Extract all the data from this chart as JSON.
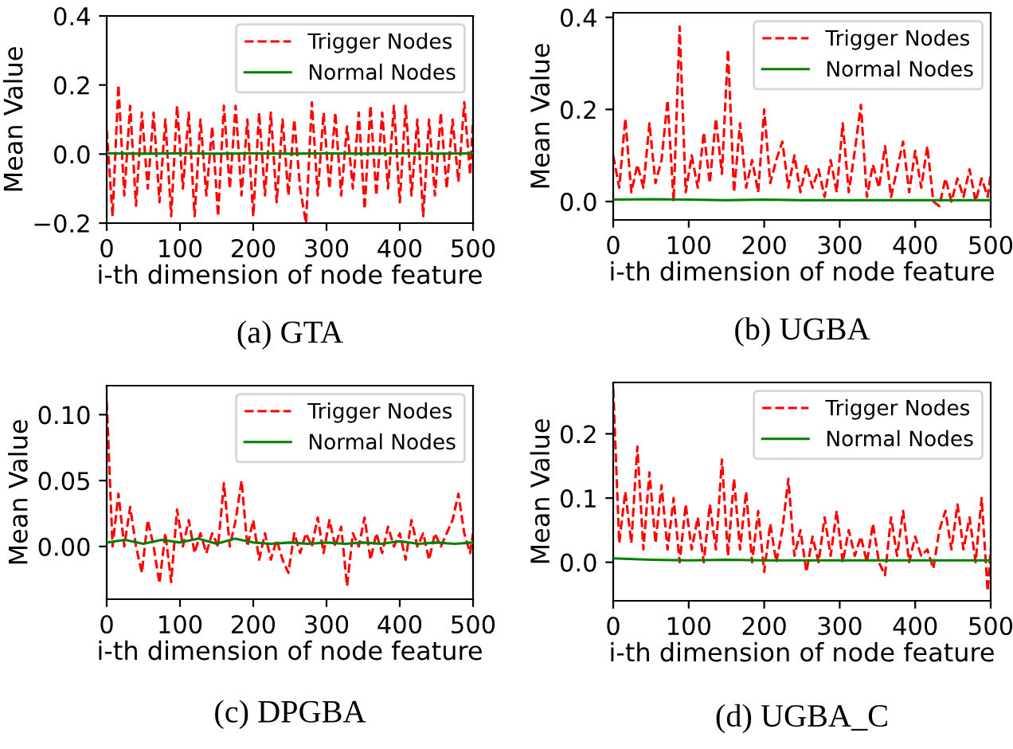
{
  "chart_data": [
    {
      "type": "line",
      "xlabel": "i-th dimension of node feature",
      "ylabel": "Mean Value",
      "annotations": [
        "(a) GTA"
      ],
      "xlim": [
        0,
        500
      ],
      "xticks": [
        0,
        100,
        200,
        300,
        400,
        500
      ],
      "ylim": [
        -0.2,
        0.4
      ],
      "yticks": [
        {
          "value": -0.2,
          "label": "−0.2"
        },
        {
          "value": 0,
          "label": "0.0"
        },
        {
          "value": 0.2,
          "label": "0.2"
        },
        {
          "value": 0.4,
          "label": "0.4"
        }
      ],
      "legend": "top right",
      "grid": false,
      "series": [
        {
          "name": "Trigger Nodes",
          "color": "#ff0000",
          "line_style": "dashed",
          "x": [
            0,
            8,
            16,
            24,
            32,
            40,
            48,
            56,
            64,
            72,
            80,
            88,
            96,
            104,
            112,
            120,
            128,
            136,
            144,
            152,
            160,
            168,
            176,
            184,
            192,
            200,
            208,
            216,
            224,
            232,
            240,
            248,
            256,
            264,
            272,
            280,
            288,
            296,
            304,
            312,
            320,
            328,
            336,
            344,
            352,
            360,
            368,
            376,
            384,
            392,
            400,
            408,
            416,
            424,
            432,
            440,
            448,
            456,
            464,
            472,
            480,
            488,
            496,
            500
          ],
          "values": [
            0.07,
            -0.18,
            0.2,
            -0.12,
            0.14,
            -0.15,
            0.12,
            -0.1,
            0.12,
            -0.14,
            0.1,
            -0.18,
            0.14,
            -0.1,
            0.12,
            -0.18,
            0.1,
            -0.12,
            0.08,
            -0.18,
            0.14,
            -0.1,
            0.14,
            -0.12,
            0.1,
            -0.18,
            0.12,
            -0.12,
            0.12,
            -0.14,
            0.1,
            -0.12,
            0.1,
            -0.1,
            -0.2,
            0.15,
            -0.12,
            0.12,
            -0.1,
            0.12,
            -0.12,
            0.08,
            -0.1,
            0.12,
            -0.16,
            0.14,
            -0.12,
            0.12,
            -0.1,
            0.14,
            -0.14,
            0.14,
            -0.12,
            0.1,
            -0.18,
            0.1,
            -0.12,
            0.12,
            -0.1,
            0.1,
            -0.08,
            0.15,
            -0.06,
            0.1
          ]
        },
        {
          "name": "Normal Nodes",
          "color": "#008000",
          "line_style": "solid",
          "x": [
            0,
            50,
            100,
            150,
            200,
            250,
            300,
            350,
            400,
            450,
            500
          ],
          "values": [
            0.002,
            0.001,
            0.002,
            0.001,
            0.002,
            0.001,
            0.002,
            0.001,
            0.002,
            0.001,
            0.002
          ]
        }
      ]
    },
    {
      "type": "line",
      "xlabel": "i-th dimension of node feature",
      "ylabel": "Mean Value",
      "annotations": [
        "(b) UGBA"
      ],
      "xlim": [
        0,
        500
      ],
      "xticks": [
        0,
        100,
        200,
        300,
        400,
        500
      ],
      "ylim": [
        -0.04,
        0.41
      ],
      "yticks": [
        {
          "value": 0,
          "label": "0.0"
        },
        {
          "value": 0.2,
          "label": "0.2"
        },
        {
          "value": 0.4,
          "label": "0.4"
        }
      ],
      "legend": "top right",
      "grid": false,
      "series": [
        {
          "name": "Trigger Nodes",
          "color": "#ff0000",
          "line_style": "dashed",
          "x": [
            0,
            8,
            16,
            24,
            32,
            40,
            48,
            56,
            64,
            72,
            80,
            88,
            96,
            104,
            112,
            120,
            128,
            136,
            144,
            152,
            160,
            168,
            176,
            184,
            192,
            200,
            208,
            216,
            224,
            232,
            240,
            248,
            256,
            264,
            272,
            280,
            288,
            296,
            304,
            312,
            320,
            328,
            336,
            344,
            352,
            360,
            368,
            376,
            384,
            392,
            400,
            408,
            416,
            424,
            432,
            440,
            448,
            456,
            464,
            472,
            480,
            488,
            496,
            500
          ],
          "values": [
            0.1,
            0.03,
            0.18,
            0.02,
            0.08,
            0.03,
            0.17,
            0.04,
            0.09,
            0.22,
            0.0,
            0.38,
            0.02,
            0.1,
            0.03,
            0.15,
            0.04,
            0.18,
            0.06,
            0.33,
            0.02,
            0.17,
            0.03,
            0.09,
            0.02,
            0.2,
            0.04,
            0.09,
            0.13,
            0.03,
            0.1,
            0.02,
            0.08,
            0.03,
            0.07,
            0.01,
            0.09,
            0.02,
            0.17,
            0.02,
            0.11,
            0.21,
            0.01,
            0.08,
            0.03,
            0.12,
            0.01,
            0.07,
            0.13,
            0.02,
            0.11,
            0.03,
            0.12,
            0.0,
            -0.01,
            0.05,
            0.0,
            0.05,
            0.01,
            0.07,
            0.0,
            0.05,
            0.01,
            0.06
          ]
        },
        {
          "name": "Normal Nodes",
          "color": "#008000",
          "line_style": "solid",
          "x": [
            0,
            50,
            100,
            150,
            200,
            250,
            300,
            350,
            400,
            450,
            500
          ],
          "values": [
            0.004,
            0.005,
            0.004,
            0.003,
            0.004,
            0.003,
            0.003,
            0.003,
            0.003,
            0.003,
            0.003
          ]
        }
      ]
    },
    {
      "type": "line",
      "xlabel": "i-th dimension of node feature",
      "ylabel": "Mean Value",
      "annotations": [
        "(c) DPGBA"
      ],
      "xlim": [
        0,
        500
      ],
      "xticks": [
        0,
        100,
        200,
        300,
        400,
        500
      ],
      "ylim": [
        -0.04,
        0.122
      ],
      "yticks": [
        {
          "value": 0,
          "label": "0.00"
        },
        {
          "value": 0.05,
          "label": "0.05"
        },
        {
          "value": 0.1,
          "label": "0.10"
        }
      ],
      "legend": "top right",
      "grid": false,
      "series": [
        {
          "name": "Trigger Nodes",
          "color": "#ff0000",
          "line_style": "dashed",
          "x": [
            0,
            8,
            16,
            24,
            32,
            40,
            48,
            56,
            64,
            72,
            80,
            88,
            96,
            104,
            112,
            120,
            128,
            136,
            144,
            152,
            160,
            168,
            176,
            184,
            192,
            200,
            208,
            216,
            224,
            232,
            240,
            248,
            256,
            264,
            272,
            280,
            288,
            296,
            304,
            312,
            320,
            328,
            336,
            344,
            352,
            360,
            368,
            376,
            384,
            392,
            400,
            408,
            416,
            424,
            432,
            440,
            448,
            456,
            464,
            472,
            480,
            488,
            496,
            500
          ],
          "values": [
            0.11,
            0.0,
            0.04,
            0.0,
            0.03,
            0.0,
            -0.02,
            0.02,
            0.0,
            -0.028,
            0.01,
            -0.027,
            0.028,
            0.0,
            0.02,
            -0.005,
            0.01,
            -0.005,
            0.01,
            0.0,
            0.048,
            0.0,
            0.02,
            0.05,
            0.0,
            0.02,
            -0.01,
            0.01,
            -0.01,
            0.005,
            -0.01,
            -0.02,
            0.01,
            -0.005,
            0.01,
            0.0,
            0.022,
            -0.005,
            0.02,
            0.0,
            0.015,
            -0.03,
            0.01,
            0.0,
            0.022,
            -0.01,
            0.01,
            -0.005,
            0.015,
            0.0,
            0.01,
            -0.01,
            0.02,
            0.0,
            0.01,
            -0.01,
            0.01,
            0.0,
            0.01,
            0.02,
            0.04,
            0.01,
            -0.005,
            0.01
          ]
        },
        {
          "name": "Normal Nodes",
          "color": "#008000",
          "line_style": "solid",
          "x": [
            0,
            25,
            50,
            75,
            100,
            125,
            150,
            175,
            200,
            225,
            250,
            275,
            300,
            325,
            350,
            375,
            400,
            425,
            450,
            475,
            500
          ],
          "values": [
            0.003,
            0.005,
            0.002,
            0.005,
            0.003,
            0.006,
            0.002,
            0.006,
            0.003,
            0.002,
            0.003,
            0.002,
            0.003,
            0.002,
            0.003,
            0.002,
            0.004,
            0.002,
            0.003,
            0.002,
            0.003
          ]
        }
      ]
    },
    {
      "type": "line",
      "xlabel": "i-th dimension of node feature",
      "ylabel": "Mean Value",
      "annotations": [
        "(d) UGBA_C"
      ],
      "xlim": [
        0,
        500
      ],
      "xticks": [
        0,
        100,
        200,
        300,
        400,
        500
      ],
      "ylim": [
        -0.06,
        0.28
      ],
      "yticks": [
        {
          "value": 0,
          "label": "0.0"
        },
        {
          "value": 0.1,
          "label": "0.1"
        },
        {
          "value": 0.2,
          "label": "0.2"
        }
      ],
      "legend": "top right",
      "grid": false,
      "series": [
        {
          "name": "Trigger Nodes",
          "color": "#ff0000",
          "line_style": "dashed",
          "x": [
            0,
            8,
            16,
            24,
            32,
            40,
            48,
            56,
            64,
            72,
            80,
            88,
            96,
            104,
            112,
            120,
            128,
            136,
            144,
            152,
            160,
            168,
            176,
            184,
            192,
            200,
            208,
            216,
            224,
            232,
            240,
            248,
            256,
            264,
            272,
            280,
            288,
            296,
            304,
            312,
            320,
            328,
            336,
            344,
            352,
            360,
            368,
            376,
            384,
            392,
            400,
            408,
            416,
            424,
            432,
            440,
            448,
            456,
            464,
            472,
            480,
            488,
            496,
            500
          ],
          "values": [
            0.27,
            0.03,
            0.11,
            0.03,
            0.18,
            0.02,
            0.14,
            0.03,
            0.12,
            0.02,
            0.1,
            0.0,
            0.09,
            0.02,
            0.07,
            0.0,
            0.09,
            0.02,
            0.16,
            0.01,
            0.13,
            0.02,
            0.11,
            0.0,
            0.08,
            -0.015,
            0.06,
            0.0,
            0.05,
            0.13,
            0.01,
            0.05,
            -0.015,
            0.04,
            0.0,
            0.07,
            0.01,
            0.08,
            0.0,
            0.05,
            0.01,
            0.04,
            0.0,
            0.06,
            0.0,
            -0.02,
            0.07,
            0.01,
            0.08,
            0.0,
            0.04,
            0.01,
            0.02,
            -0.01,
            0.05,
            0.08,
            0.02,
            0.09,
            0.02,
            0.07,
            0.0,
            0.1,
            -0.045,
            0.02
          ]
        },
        {
          "name": "Normal Nodes",
          "color": "#008000",
          "line_style": "solid",
          "x": [
            0,
            50,
            100,
            150,
            200,
            250,
            300,
            350,
            400,
            450,
            500
          ],
          "values": [
            0.006,
            0.004,
            0.003,
            0.004,
            0.003,
            0.003,
            0.003,
            0.003,
            0.003,
            0.003,
            0.003
          ]
        }
      ]
    }
  ]
}
